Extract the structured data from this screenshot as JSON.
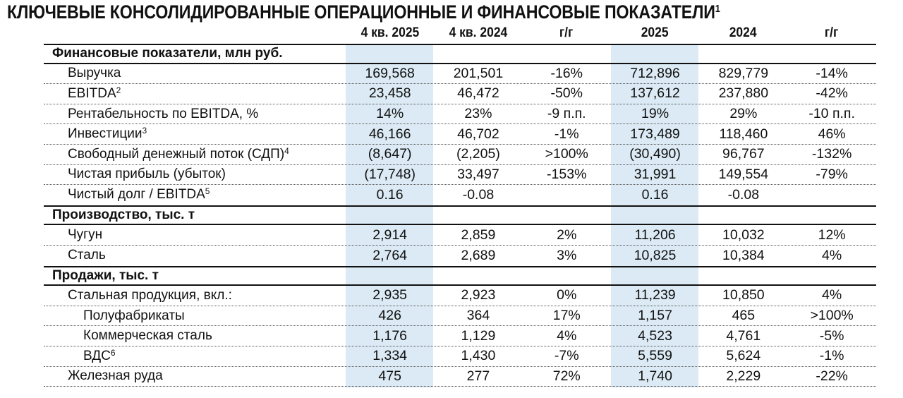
{
  "title": {
    "text": "КЛЮЧЕВЫЕ КОНСОЛИДИРОВАННЫЕ ОПЕРАЦИОННЫЕ И ФИНАНСОВЫЕ ПОКАЗАТЕЛИ",
    "footnote": "1"
  },
  "columns": [
    "4 кв. 2025",
    "4 кв. 2024",
    "г/г",
    "2025",
    "2024",
    "г/г"
  ],
  "highlight_color": "#dbeaf4",
  "sections": [
    {
      "label": "Финансовые показатели, млн руб.",
      "rows": [
        {
          "label": "Выручка",
          "sup": "",
          "level": 1,
          "values": [
            "169,568",
            "201,501",
            "-16%",
            "712,896",
            "829,779",
            "-14%"
          ]
        },
        {
          "label": "EBITDA",
          "sup": "2",
          "level": 1,
          "values": [
            "23,458",
            "46,472",
            "-50%",
            "137,612",
            "237,880",
            "-42%"
          ]
        },
        {
          "label": "Рентабельность по EBITDA, %",
          "sup": "",
          "level": 1,
          "values": [
            "14%",
            "23%",
            "-9 п.п.",
            "19%",
            "29%",
            "-10 п.п."
          ]
        },
        {
          "label": "Инвестиции",
          "sup": "3",
          "level": 1,
          "values": [
            "46,166",
            "46,702",
            "-1%",
            "173,489",
            "118,460",
            "46%"
          ]
        },
        {
          "label": "Свободный денежный поток (СДП)",
          "sup": "4",
          "level": 1,
          "values": [
            "(8,647)",
            "(2,205)",
            ">100%",
            "(30,490)",
            "96,767",
            "-132%"
          ]
        },
        {
          "label": "Чистая прибыль (убыток)",
          "sup": "",
          "level": 1,
          "values": [
            "(17,748)",
            "33,497",
            "-153%",
            "31,991",
            "149,554",
            "-79%"
          ]
        },
        {
          "label": "Чистый долг / EBITDA",
          "sup": "5",
          "level": 1,
          "values": [
            "0.16",
            "-0.08",
            "",
            "0.16",
            "-0.08",
            ""
          ]
        }
      ]
    },
    {
      "label": "Производство, тыс. т",
      "rows": [
        {
          "label": "Чугун",
          "sup": "",
          "level": 1,
          "values": [
            "2,914",
            "2,859",
            "2%",
            "11,206",
            "10,032",
            "12%"
          ]
        },
        {
          "label": "Сталь",
          "sup": "",
          "level": 1,
          "values": [
            "2,764",
            "2,689",
            "3%",
            "10,825",
            "10,384",
            "4%"
          ]
        }
      ]
    },
    {
      "label": "Продажи, тыс. т",
      "rows": [
        {
          "label": "Стальная продукция, вкл.:",
          "sup": "",
          "level": 1,
          "values": [
            "2,935",
            "2,923",
            "0%",
            "11,239",
            "10,850",
            "4%"
          ]
        },
        {
          "label": "Полуфабрикаты",
          "sup": "",
          "level": 2,
          "values": [
            "426",
            "364",
            "17%",
            "1,157",
            "465",
            ">100%"
          ]
        },
        {
          "label": "Коммерческая сталь",
          "sup": "",
          "level": 2,
          "values": [
            "1,176",
            "1,129",
            "4%",
            "4,523",
            "4,761",
            "-5%"
          ]
        },
        {
          "label": "ВДС",
          "sup": "6",
          "level": 2,
          "values": [
            "1,334",
            "1,430",
            "-7%",
            "5,559",
            "5,624",
            "-1%"
          ]
        },
        {
          "label": "Железная руда",
          "sup": "",
          "level": 1,
          "values": [
            "475",
            "277",
            "72%",
            "1,740",
            "2,229",
            "-22%"
          ]
        }
      ]
    }
  ]
}
